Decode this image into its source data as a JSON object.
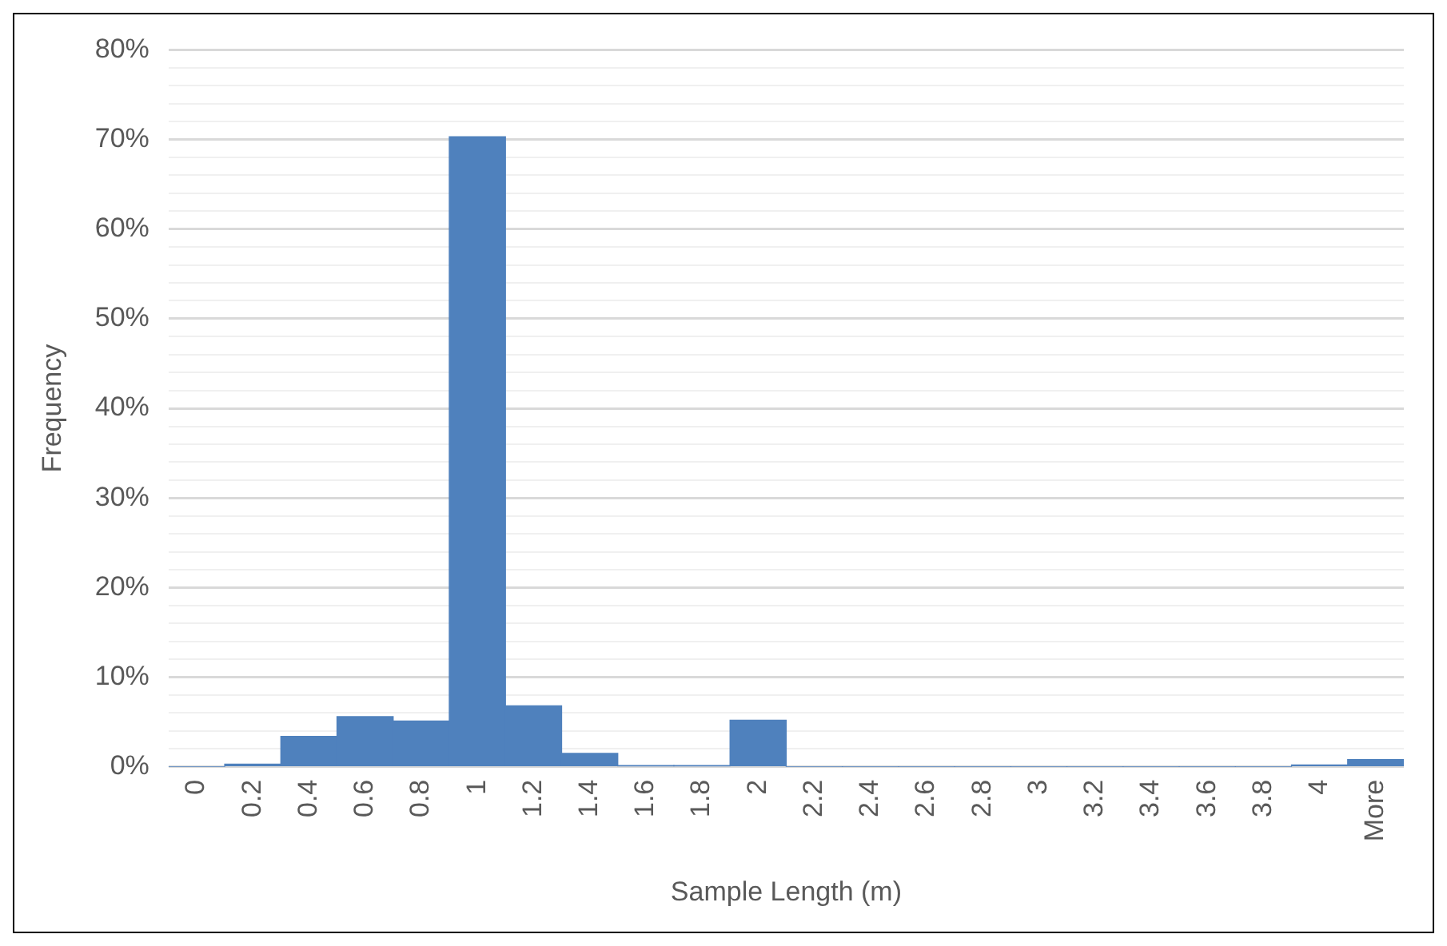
{
  "chart_data": {
    "type": "bar",
    "xlabel": "Sample Length (m)",
    "ylabel": "Frequency",
    "categories": [
      "0",
      "0.2",
      "0.4",
      "0.6",
      "0.8",
      "1",
      "1.2",
      "1.4",
      "1.6",
      "1.8",
      "2",
      "2.2",
      "2.4",
      "2.6",
      "2.8",
      "3",
      "3.2",
      "3.4",
      "3.6",
      "3.8",
      "4",
      "More"
    ],
    "values": [
      0,
      0.3,
      3.4,
      5.6,
      5.1,
      70.3,
      6.8,
      1.5,
      0.1,
      0.1,
      5.2,
      0,
      0,
      0,
      0,
      0,
      0,
      0,
      0,
      0,
      0.2,
      0.8
    ],
    "color": "#4f81bd",
    "ylim": [
      0,
      80
    ],
    "yticks": [
      {
        "value": 0,
        "label": "0%"
      },
      {
        "value": 2,
        "label": null
      },
      {
        "value": 4,
        "label": null
      },
      {
        "value": 6,
        "label": null
      },
      {
        "value": 8,
        "label": null
      },
      {
        "value": 10,
        "label": "10%"
      },
      {
        "value": 12,
        "label": null
      },
      {
        "value": 14,
        "label": null
      },
      {
        "value": 16,
        "label": null
      },
      {
        "value": 18,
        "label": null
      },
      {
        "value": 20,
        "label": "20%"
      },
      {
        "value": 22,
        "label": null
      },
      {
        "value": 24,
        "label": null
      },
      {
        "value": 26,
        "label": null
      },
      {
        "value": 28,
        "label": null
      },
      {
        "value": 30,
        "label": "30%"
      },
      {
        "value": 32,
        "label": null
      },
      {
        "value": 34,
        "label": null
      },
      {
        "value": 36,
        "label": null
      },
      {
        "value": 38,
        "label": null
      },
      {
        "value": 40,
        "label": "40%"
      },
      {
        "value": 42,
        "label": null
      },
      {
        "value": 44,
        "label": null
      },
      {
        "value": 46,
        "label": null
      },
      {
        "value": 48,
        "label": null
      },
      {
        "value": 50,
        "label": "50%"
      },
      {
        "value": 52,
        "label": null
      },
      {
        "value": 54,
        "label": null
      },
      {
        "value": 56,
        "label": null
      },
      {
        "value": 58,
        "label": null
      },
      {
        "value": 60,
        "label": "60%"
      },
      {
        "value": 62,
        "label": null
      },
      {
        "value": 64,
        "label": null
      },
      {
        "value": 66,
        "label": null
      },
      {
        "value": 68,
        "label": null
      },
      {
        "value": 70,
        "label": "70%"
      },
      {
        "value": 72,
        "label": null
      },
      {
        "value": 74,
        "label": null
      },
      {
        "value": 76,
        "label": null
      },
      {
        "value": 78,
        "label": null
      },
      {
        "value": 80,
        "label": "80%"
      }
    ],
    "grid": "y"
  }
}
